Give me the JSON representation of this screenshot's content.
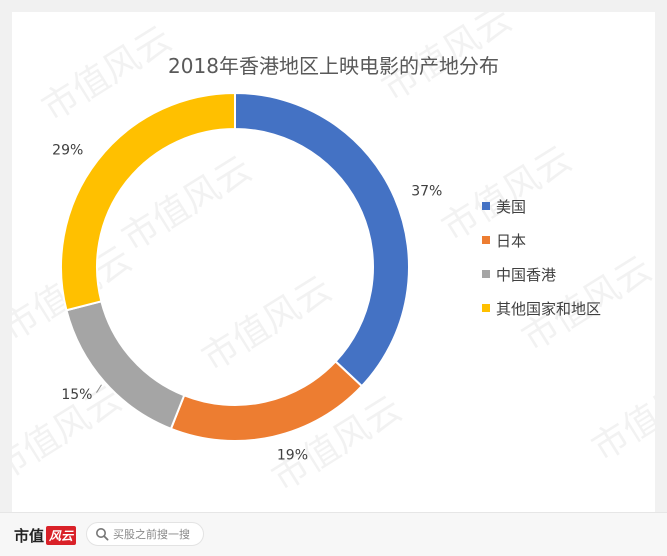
{
  "chart_data": {
    "type": "pie",
    "title": "2018年香港地区上映电影的产地分布",
    "categories": [
      "美国",
      "日本",
      "中国香港",
      "其他国家和地区"
    ],
    "values": [
      37,
      19,
      15,
      29
    ],
    "labels": [
      "37%",
      "19%",
      "15%",
      "29%"
    ],
    "colors": [
      "#4472C4",
      "#ED7D31",
      "#A5A5A5",
      "#FFC000"
    ],
    "legend": "right"
  },
  "watermark": {
    "text": "市值风云"
  },
  "footer": {
    "brand_main": "市值",
    "brand_sub": "风云",
    "search_placeholder": "买股之前搜一搜"
  }
}
